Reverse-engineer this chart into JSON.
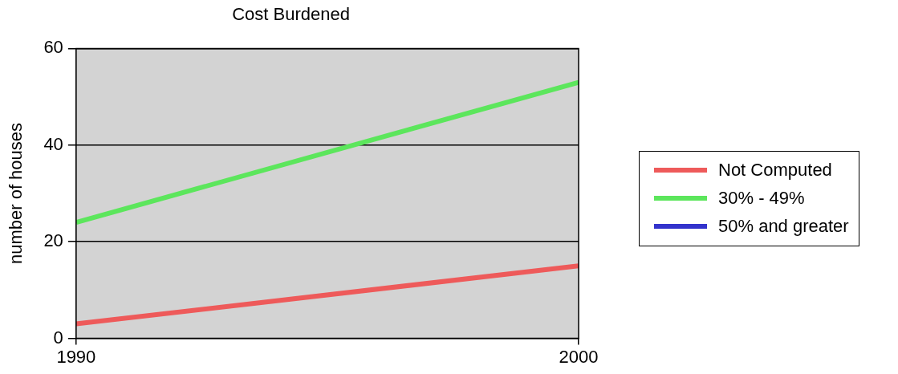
{
  "chart_data": {
    "type": "line",
    "title": "Cost Burdened",
    "ylabel": "number of houses",
    "x": [
      1990,
      2000
    ],
    "xlim": [
      1990,
      2000
    ],
    "xticks": [
      1990,
      2000
    ],
    "ylim": [
      0,
      60
    ],
    "yticks": [
      0,
      20,
      40,
      60
    ],
    "grid": "y",
    "legend": "right",
    "marker": "none",
    "line_style": "solid",
    "series": [
      {
        "name": "Not Computed",
        "color": "#ee5a5a",
        "values": [
          3,
          15
        ]
      },
      {
        "name": "30% - 49%",
        "color": "#5ce65c",
        "values": [
          24,
          53
        ]
      },
      {
        "name": "50% and greater",
        "color": "#3333cc",
        "values": [
          null,
          null
        ]
      }
    ]
  }
}
